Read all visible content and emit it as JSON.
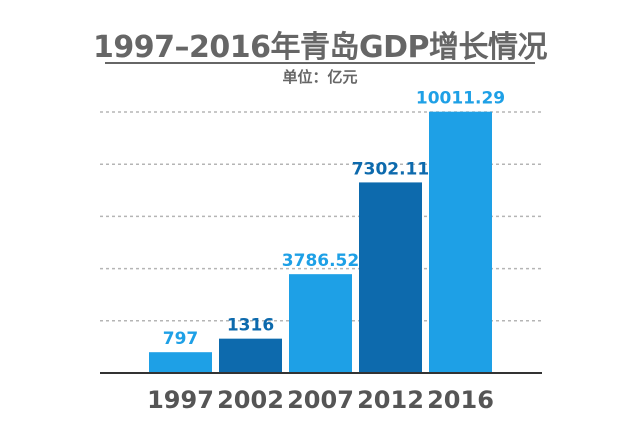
{
  "chart_data": {
    "type": "bar",
    "title": "1997–2016年青岛GDP增长情况",
    "unit_label": "单位：亿元",
    "categories": [
      "1997",
      "2002",
      "2007",
      "2012",
      "2016"
    ],
    "values": [
      797,
      1316,
      3786.52,
      7302.11,
      10011.29
    ],
    "value_labels": [
      "797",
      "1316",
      "3786.52",
      "7302.11",
      "10011.29"
    ],
    "ylim": [
      0,
      10000
    ],
    "grid": true,
    "grid_style": "dashed",
    "legend": "none",
    "colors": [
      "#1ea0e6",
      "#0d6aad",
      "#1ea0e6",
      "#0d6aad",
      "#1ea0e6"
    ],
    "label_colors": [
      "#1ea0e6",
      "#0d6aad",
      "#1ea0e6",
      "#0d6aad",
      "#1ea0e6"
    ],
    "grid_color": "#b5b5b5",
    "axis_color": "#333333"
  }
}
